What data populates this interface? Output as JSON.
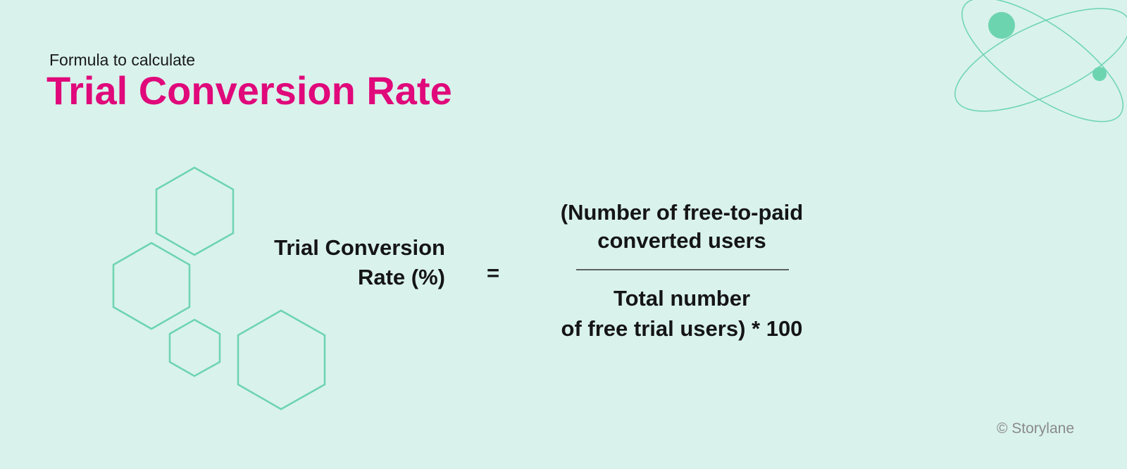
{
  "header": {
    "kicker": "Formula to calculate",
    "title": "Trial Conversion Rate"
  },
  "formula": {
    "left": [
      "Trial Conversion",
      "Rate (%)"
    ],
    "equals": "=",
    "numerator": [
      "(Number of free-to-paid",
      "converted users"
    ],
    "denominator": [
      "Total number",
      "of free trial users) * 100"
    ]
  },
  "footer": {
    "credit": "© Storylane"
  }
}
